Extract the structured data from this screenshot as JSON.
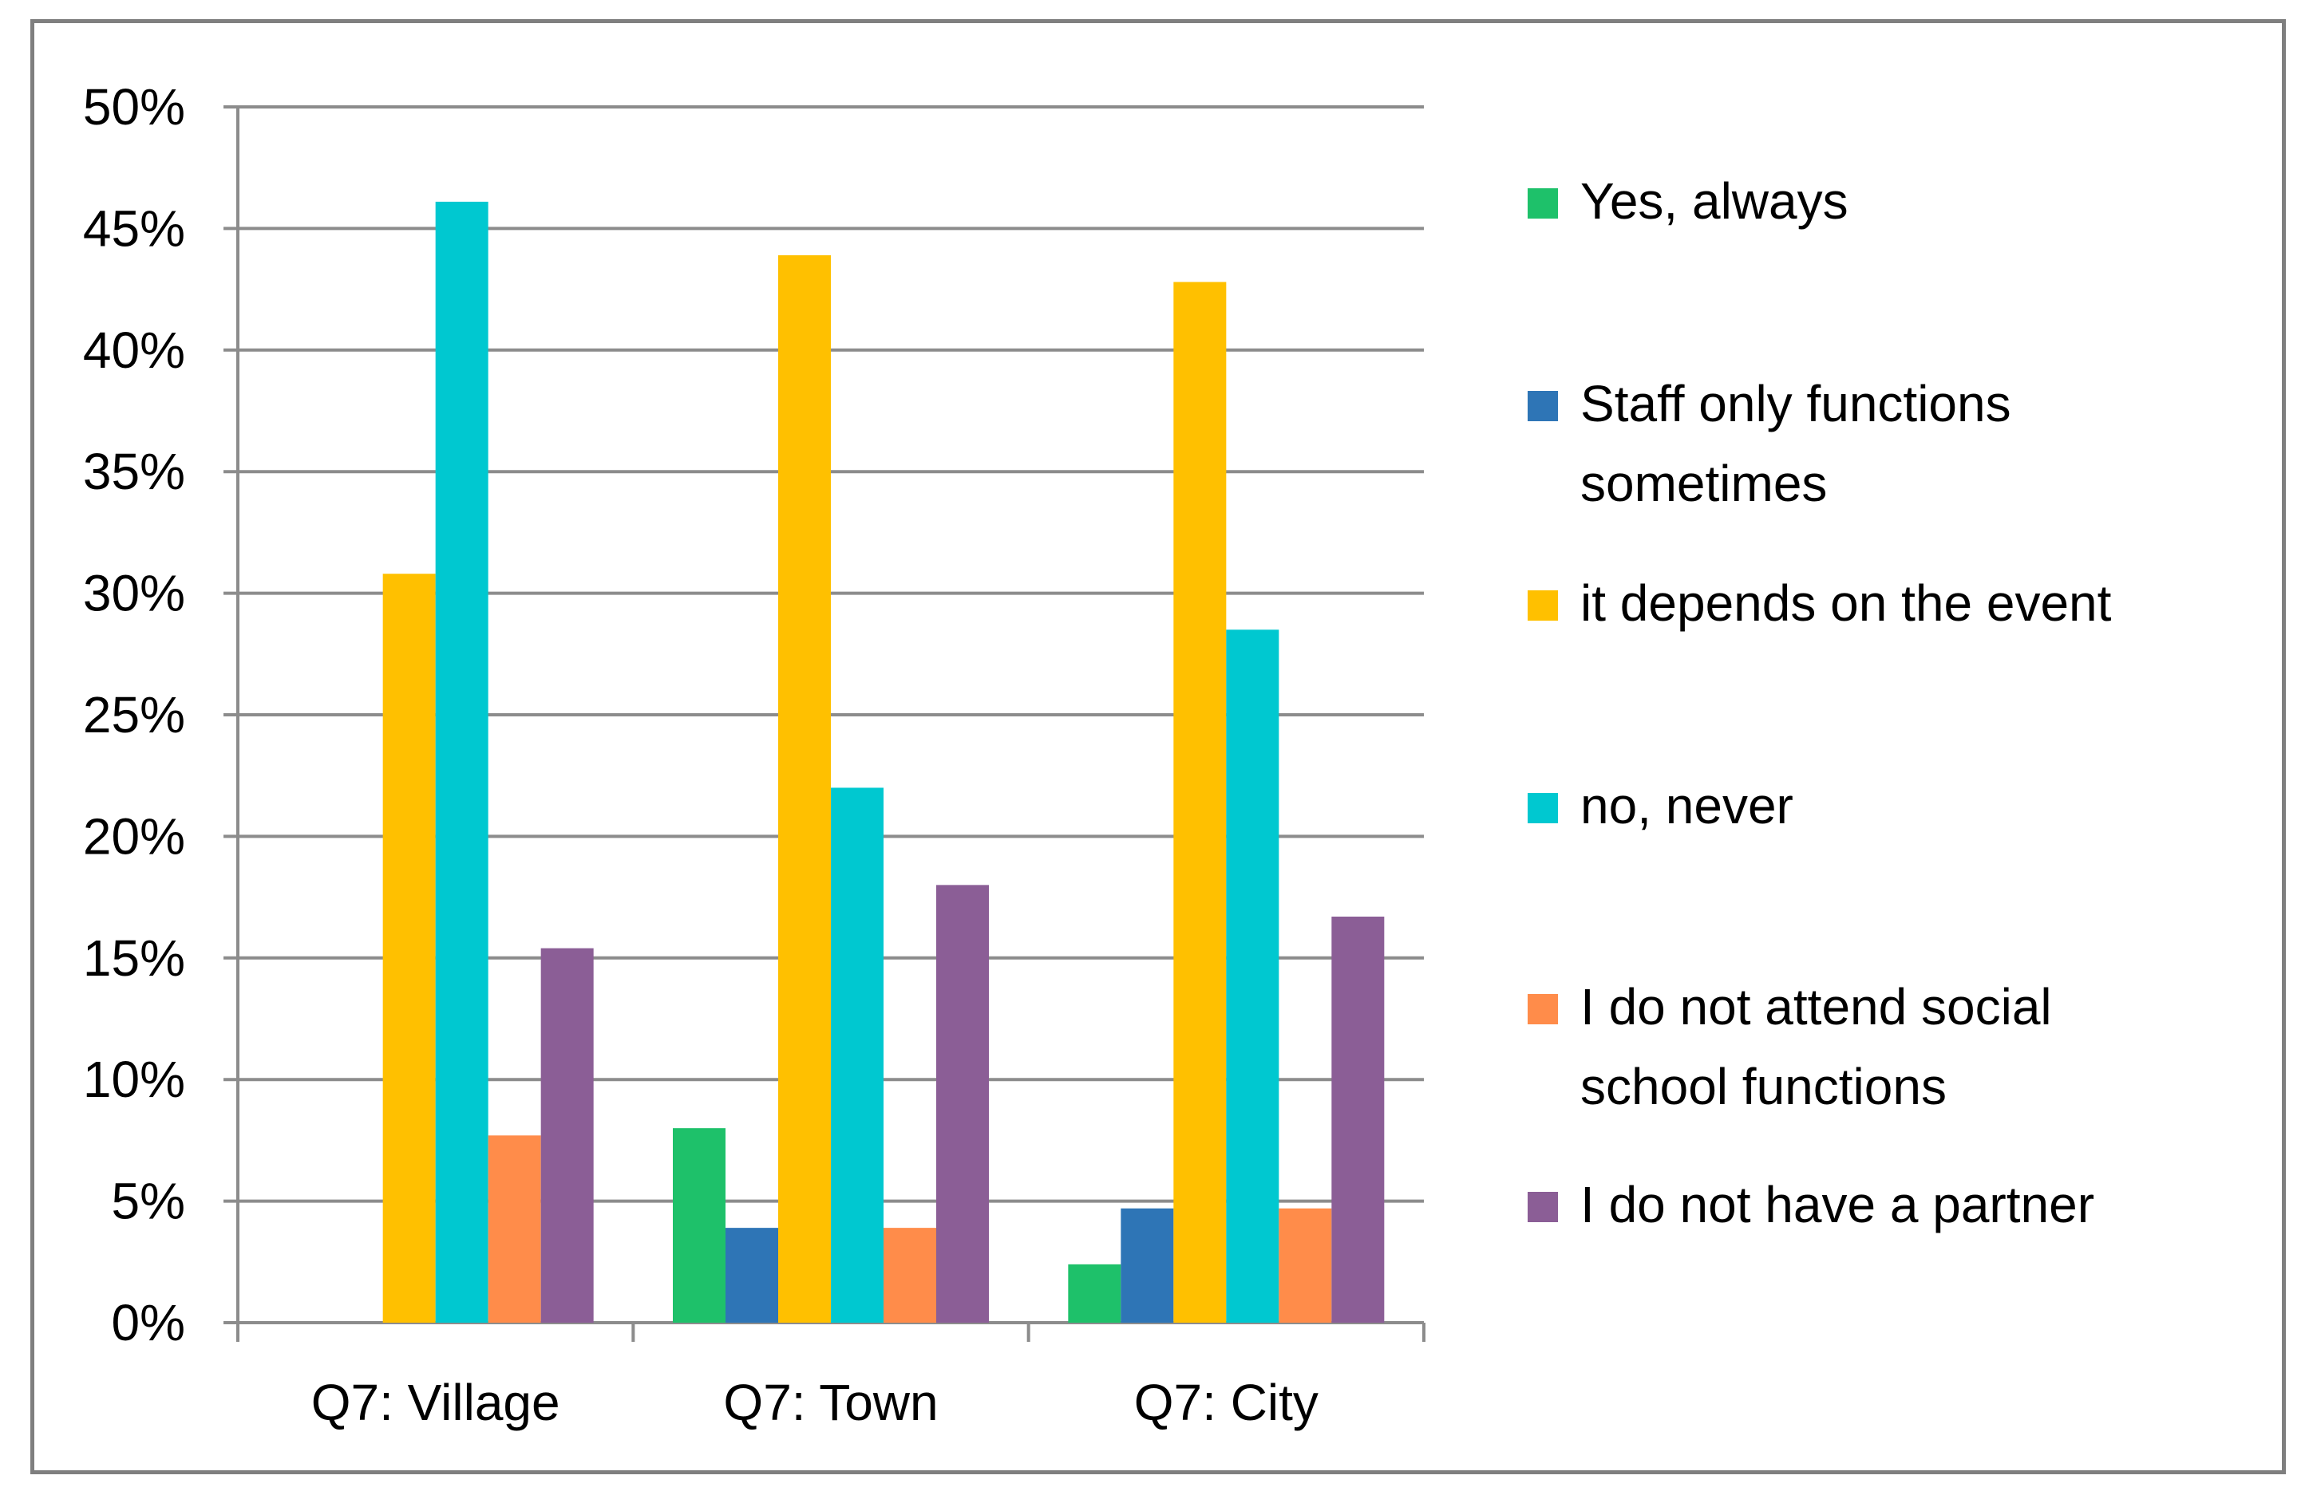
{
  "chart_data": {
    "type": "bar",
    "title": "",
    "xlabel": "",
    "ylabel": "",
    "ylim": [
      0,
      0.5
    ],
    "y_ticks": [
      "0%",
      "5%",
      "10%",
      "15%",
      "20%",
      "25%",
      "30%",
      "35%",
      "40%",
      "45%",
      "50%"
    ],
    "grid": "horizontal",
    "legend_position": "right",
    "categories": [
      "Q7: Village",
      "Q7: Town",
      "Q7: City"
    ],
    "series": [
      {
        "name": "Yes, always",
        "legend_lines": [
          "Yes, always"
        ],
        "color": "#1EC16A",
        "values": [
          0.0,
          0.08,
          0.024
        ]
      },
      {
        "name": "Staff only functions sometimes",
        "legend_lines": [
          "Staff only functions",
          "sometimes"
        ],
        "color": "#2E75B6",
        "values": [
          0.0,
          0.039,
          0.047
        ]
      },
      {
        "name": "it depends on the event",
        "legend_lines": [
          "it depends on the event"
        ],
        "color": "#FFC000",
        "values": [
          0.308,
          0.439,
          0.428
        ]
      },
      {
        "name": "no, never",
        "legend_lines": [
          "no, never"
        ],
        "color": "#00C8D0",
        "values": [
          0.461,
          0.22,
          0.285
        ]
      },
      {
        "name": "I do not attend social school functions",
        "legend_lines": [
          "I do not attend social",
          "school functions"
        ],
        "color": "#FF8C4A",
        "values": [
          0.077,
          0.039,
          0.047
        ]
      },
      {
        "name": "I do not have a partner",
        "legend_lines": [
          "I do not have a partner"
        ],
        "color": "#8B5E96",
        "values": [
          0.154,
          0.18,
          0.167
        ]
      }
    ]
  },
  "colors": {
    "gridline": "#8c8c8c",
    "axis": "#8c8c8c",
    "frame": "#7f7f7f"
  }
}
